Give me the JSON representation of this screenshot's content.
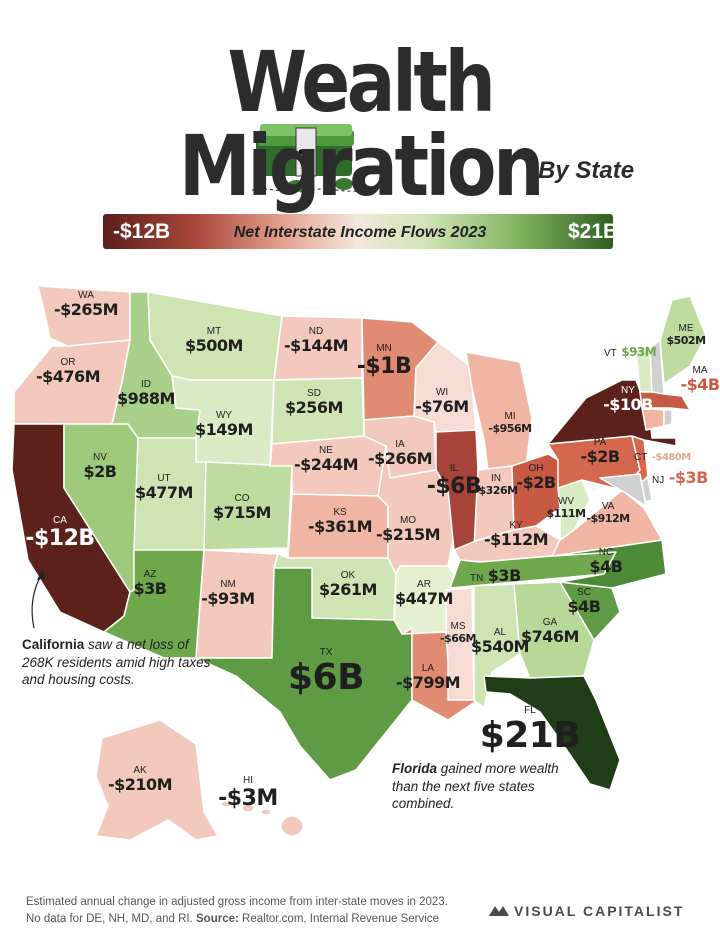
{
  "title": "Wealth Migration",
  "subtitle": "By State",
  "legend": {
    "label": "Net Interstate Income Flows 2023",
    "min": "-$12B",
    "max": "$21B"
  },
  "notes": {
    "california_bold": "California",
    "california_text": "saw a net loss of 268K residents amid high taxes and housing costs.",
    "florida_bold": "Florida",
    "florida_text": "gained more wealth than the next five states combined."
  },
  "footer": {
    "line1": "Estimated annual change in adjusted gross income from inter-state moves in 2023.",
    "line2_prefix": "No data for DE, NH, MD, and RI.",
    "source_label": "Source:",
    "source_text": "Realtor.com, Internal Revenue Service"
  },
  "brand": "VISUAL CAPITALIST",
  "colors": {
    "large_loss": "#5c211b",
    "loss": "#e18b73",
    "small_loss": "#f2c9bc",
    "small_gain": "#cfe4b3",
    "gain": "#8dbe6a",
    "large_gain": "#3f7a2d",
    "largest_gain": "#1f3e18",
    "no_data": "#d0d0d0"
  },
  "states": {
    "WA": {
      "abbr": "WA",
      "value": "-$265M"
    },
    "OR": {
      "abbr": "OR",
      "value": "-$476M"
    },
    "CA": {
      "abbr": "CA",
      "value": "-$12B"
    },
    "NV": {
      "abbr": "NV",
      "value": "$2B"
    },
    "ID": {
      "abbr": "ID",
      "value": "$988M"
    },
    "MT": {
      "abbr": "MT",
      "value": "$500M"
    },
    "WY": {
      "abbr": "WY",
      "value": "$149M"
    },
    "UT": {
      "abbr": "UT",
      "value": "$477M"
    },
    "CO": {
      "abbr": "CO",
      "value": "$715M"
    },
    "AZ": {
      "abbr": "AZ",
      "value": "$3B"
    },
    "NM": {
      "abbr": "NM",
      "value": "-$93M"
    },
    "ND": {
      "abbr": "ND",
      "value": "-$144M"
    },
    "SD": {
      "abbr": "SD",
      "value": "$256M"
    },
    "NE": {
      "abbr": "NE",
      "value": "-$244M"
    },
    "KS": {
      "abbr": "KS",
      "value": "-$361M"
    },
    "OK": {
      "abbr": "OK",
      "value": "$261M"
    },
    "TX": {
      "abbr": "TX",
      "value": "$6B"
    },
    "MN": {
      "abbr": "MN",
      "value": "-$1B"
    },
    "IA": {
      "abbr": "IA",
      "value": "-$266M"
    },
    "MO": {
      "abbr": "MO",
      "value": "-$215M"
    },
    "AR": {
      "abbr": "AR",
      "value": "$447M"
    },
    "LA": {
      "abbr": "LA",
      "value": "-$799M"
    },
    "WI": {
      "abbr": "WI",
      "value": "-$76M"
    },
    "IL": {
      "abbr": "IL",
      "value": "-$6B"
    },
    "MI": {
      "abbr": "MI",
      "value": "-$956M"
    },
    "IN": {
      "abbr": "IN",
      "value": "-$326M"
    },
    "OH": {
      "abbr": "OH",
      "value": "-$2B"
    },
    "KY": {
      "abbr": "KY",
      "value": "-$112M"
    },
    "TN": {
      "abbr": "TN",
      "value": "$3B"
    },
    "MS": {
      "abbr": "MS",
      "value": "-$66M"
    },
    "AL": {
      "abbr": "AL",
      "value": "$540M"
    },
    "GA": {
      "abbr": "GA",
      "value": "$746M"
    },
    "FL": {
      "abbr": "FL",
      "value": "$21B"
    },
    "SC": {
      "abbr": "SC",
      "value": "$4B"
    },
    "NC": {
      "abbr": "NC",
      "value": "$4B"
    },
    "VA": {
      "abbr": "VA",
      "value": "-$912M"
    },
    "WV": {
      "abbr": "WV",
      "value": "$111M"
    },
    "PA": {
      "abbr": "PA",
      "value": "-$2B"
    },
    "NY": {
      "abbr": "NY",
      "value": "-$10B"
    },
    "VT": {
      "abbr": "VT",
      "value": "$93M"
    },
    "ME": {
      "abbr": "ME",
      "value": "$502M"
    },
    "MA": {
      "abbr": "MA",
      "value": "-$4B"
    },
    "CT": {
      "abbr": "CT",
      "value": "-$480M"
    },
    "NJ": {
      "abbr": "NJ",
      "value": "-$3B"
    },
    "AK": {
      "abbr": "AK",
      "value": "-$210M"
    },
    "HI": {
      "abbr": "HI",
      "value": "-$3M"
    }
  }
}
